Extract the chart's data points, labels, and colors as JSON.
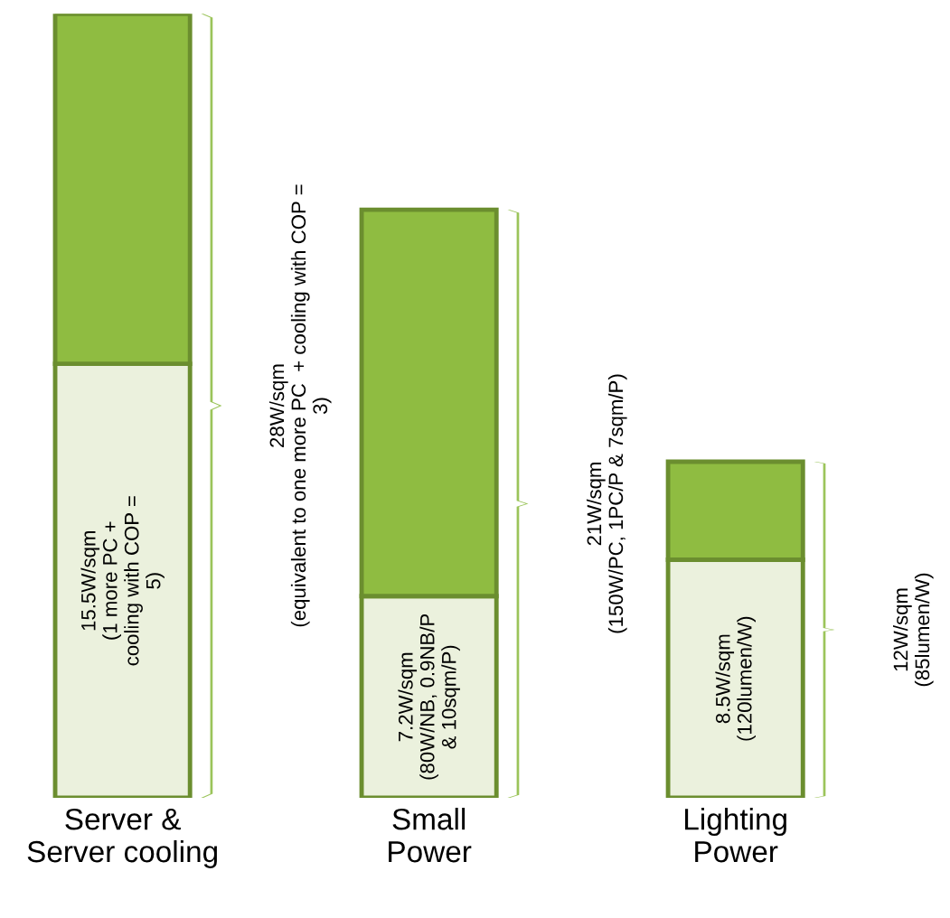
{
  "chart_data": {
    "type": "bar",
    "stacked": true,
    "categories": [
      "Server &\nServer cooling",
      "Small\nPower",
      "Lighting\nPower"
    ],
    "series": [
      {
        "color": "#ebf1dd",
        "values": [
          15.5,
          7.2,
          8.5
        ],
        "value_labels": [
          "15.5W/sqm\n(1 more PC +\ncooling with COP =\n5)",
          "7.2W/sqm\n(80W/NB, 0.9NB/P\n& 10sqm/P)",
          "8.5W/sqm\n(120lumen/W)"
        ]
      },
      {
        "color": "#8fbc41",
        "values": [
          12.5,
          13.8,
          3.5
        ]
      }
    ],
    "annotations": [
      "28W/sqm\n(equivalent to one more PC  + cooling with COP =\n3)",
      "21W/sqm\n(150W/PC, 1PC/P & 7sqm/P)",
      "12W/sqm\n(85lumen/W)"
    ],
    "ylim": [
      0,
      28
    ],
    "tick_labels": "x",
    "grid": false,
    "legend": false
  }
}
